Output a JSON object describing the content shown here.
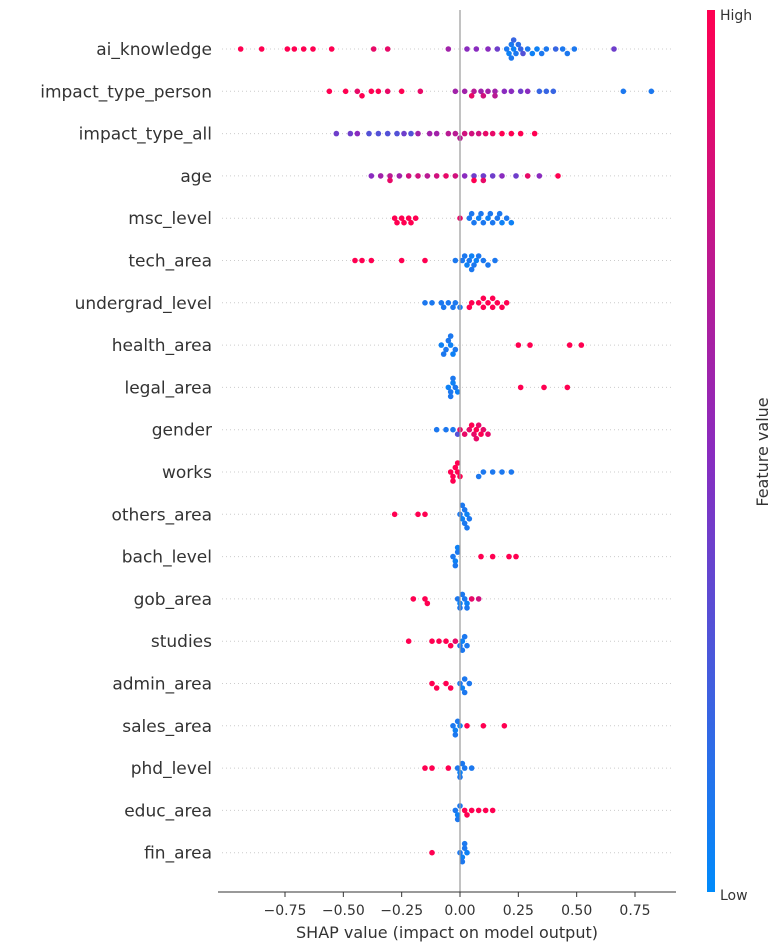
{
  "chart_data": {
    "type": "scatter",
    "xlabel": "SHAP value (impact on model output)",
    "xlim": [
      -1.0,
      0.9
    ],
    "xticks": [
      "−0.75",
      "−0.50",
      "−0.25",
      "0.00",
      "0.25",
      "0.50",
      "0.75"
    ],
    "xtick_values": [
      -0.75,
      -0.5,
      -0.25,
      0,
      0.25,
      0.5,
      0.75
    ],
    "colorbar": {
      "title": "Feature value",
      "high": "High",
      "low": "Low",
      "high_color": "#ff0051",
      "low_color": "#008bfb"
    },
    "grid": false,
    "features": [
      {
        "name": "ai_knowledge",
        "points": [
          [
            -0.94,
            1
          ],
          [
            -0.85,
            1
          ],
          [
            -0.74,
            1
          ],
          [
            -0.71,
            1
          ],
          [
            -0.67,
            1
          ],
          [
            -0.63,
            1
          ],
          [
            -0.55,
            1
          ],
          [
            -0.37,
            0.9
          ],
          [
            -0.31,
            0.9
          ],
          [
            -0.05,
            0.6
          ],
          [
            0.03,
            0.5
          ],
          [
            0.07,
            0.5
          ],
          [
            0.12,
            0.5
          ],
          [
            0.16,
            0.4
          ],
          [
            0.2,
            0.1
          ],
          [
            0.21,
            0.05
          ],
          [
            0.22,
            0.1
          ],
          [
            0.23,
            0.05
          ],
          [
            0.24,
            0.1
          ],
          [
            0.25,
            0.15
          ],
          [
            0.22,
            0.1
          ],
          [
            0.26,
            0.2
          ],
          [
            0.29,
            0.1
          ],
          [
            0.31,
            0.05
          ],
          [
            0.33,
            0.05
          ],
          [
            0.35,
            0.1
          ],
          [
            0.37,
            0.1
          ],
          [
            0.41,
            0.2
          ],
          [
            0.44,
            0.1
          ],
          [
            0.46,
            0.1
          ],
          [
            0.49,
            0.1
          ],
          [
            0.66,
            0.4
          ],
          [
            0.23,
            0.2
          ],
          [
            0.27,
            0.3
          ]
        ]
      },
      {
        "name": "impact_type_person",
        "points": [
          [
            -0.56,
            1
          ],
          [
            -0.49,
            1
          ],
          [
            -0.44,
            0.9
          ],
          [
            -0.42,
            1
          ],
          [
            -0.38,
            1
          ],
          [
            -0.35,
            1
          ],
          [
            -0.31,
            0.9
          ],
          [
            -0.25,
            1
          ],
          [
            -0.17,
            0.9
          ],
          [
            -0.02,
            0.6
          ],
          [
            0.02,
            0.6
          ],
          [
            0.06,
            0.7
          ],
          [
            0.09,
            0.6
          ],
          [
            0.12,
            0.6
          ],
          [
            0.15,
            0.6
          ],
          [
            0.19,
            0.5
          ],
          [
            0.22,
            0.5
          ],
          [
            0.26,
            0.4
          ],
          [
            0.29,
            0.5
          ],
          [
            0.34,
            0.2
          ],
          [
            0.37,
            0.2
          ],
          [
            0.4,
            0.2
          ],
          [
            0.7,
            0.1
          ],
          [
            0.82,
            0.1
          ],
          [
            0.05,
            0.9
          ],
          [
            0.1,
            0.8
          ],
          [
            0.15,
            0.7
          ]
        ]
      },
      {
        "name": "impact_type_all",
        "points": [
          [
            -0.53,
            0.4
          ],
          [
            -0.47,
            0.4
          ],
          [
            -0.44,
            0.5
          ],
          [
            -0.39,
            0.3
          ],
          [
            -0.35,
            0.3
          ],
          [
            -0.31,
            0.3
          ],
          [
            -0.27,
            0.3
          ],
          [
            -0.24,
            0.4
          ],
          [
            -0.21,
            0.3
          ],
          [
            -0.18,
            0.6
          ],
          [
            -0.13,
            0.6
          ],
          [
            -0.05,
            0.7
          ],
          [
            -0.02,
            0.7
          ],
          [
            0.02,
            0.8
          ],
          [
            0.05,
            0.8
          ],
          [
            0.08,
            0.8
          ],
          [
            0.11,
            0.9
          ],
          [
            0.14,
            0.9
          ],
          [
            0.18,
            1
          ],
          [
            0.22,
            1
          ],
          [
            0.26,
            1
          ],
          [
            0.32,
            1
          ],
          [
            -0.1,
            0.6
          ],
          [
            0.0,
            0.7
          ]
        ]
      },
      {
        "name": "age",
        "points": [
          [
            -0.38,
            0.5
          ],
          [
            -0.34,
            0.6
          ],
          [
            -0.3,
            0.7
          ],
          [
            -0.26,
            0.6
          ],
          [
            -0.22,
            0.8
          ],
          [
            -0.18,
            0.8
          ],
          [
            -0.14,
            0.7
          ],
          [
            -0.1,
            0.8
          ],
          [
            -0.06,
            0.9
          ],
          [
            -0.02,
            0.8
          ],
          [
            0.02,
            0.5
          ],
          [
            0.06,
            0.4
          ],
          [
            0.1,
            0.4
          ],
          [
            0.14,
            0.4
          ],
          [
            0.18,
            0.5
          ],
          [
            0.24,
            0.4
          ],
          [
            0.29,
            0.9
          ],
          [
            0.34,
            0.5
          ],
          [
            0.42,
            1
          ],
          [
            0.06,
            1
          ],
          [
            -0.3,
            0.9
          ],
          [
            0.1,
            0.9
          ]
        ]
      },
      {
        "name": "msc_level",
        "points": [
          [
            -0.28,
            1
          ],
          [
            -0.25,
            1
          ],
          [
            -0.22,
            1
          ],
          [
            -0.19,
            1
          ],
          [
            -0.27,
            1
          ],
          [
            -0.24,
            1
          ],
          [
            -0.21,
            1
          ],
          [
            0.0,
            0.9
          ],
          [
            0.04,
            0.1
          ],
          [
            0.06,
            0.1
          ],
          [
            0.08,
            0.05
          ],
          [
            0.1,
            0.1
          ],
          [
            0.12,
            0.05
          ],
          [
            0.14,
            0.1
          ],
          [
            0.16,
            0.1
          ],
          [
            0.18,
            0.05
          ],
          [
            0.2,
            0.1
          ],
          [
            0.22,
            0.05
          ],
          [
            0.05,
            0.1
          ],
          [
            0.09,
            0.1
          ],
          [
            0.13,
            0.1
          ],
          [
            0.17,
            0.1
          ]
        ]
      },
      {
        "name": "tech_area",
        "points": [
          [
            -0.45,
            1
          ],
          [
            -0.42,
            1
          ],
          [
            -0.38,
            1
          ],
          [
            -0.25,
            1
          ],
          [
            -0.15,
            1
          ],
          [
            -0.02,
            0.1
          ],
          [
            0.01,
            0.1
          ],
          [
            0.03,
            0.05
          ],
          [
            0.04,
            0.1
          ],
          [
            0.05,
            0.05
          ],
          [
            0.06,
            0.1
          ],
          [
            0.07,
            0.05
          ],
          [
            0.08,
            0.1
          ],
          [
            0.1,
            0.1
          ],
          [
            0.12,
            0.1
          ],
          [
            0.15,
            0.1
          ],
          [
            0.02,
            0.1
          ],
          [
            0.05,
            0.1
          ]
        ]
      },
      {
        "name": "undergrad_level",
        "points": [
          [
            -0.15,
            0.1
          ],
          [
            -0.12,
            0.1
          ],
          [
            -0.08,
            0.1
          ],
          [
            -0.05,
            0.1
          ],
          [
            -0.02,
            0.1
          ],
          [
            0.0,
            0.1
          ],
          [
            -0.07,
            0.1
          ],
          [
            -0.03,
            0.1
          ],
          [
            0.05,
            1
          ],
          [
            0.08,
            1
          ],
          [
            0.1,
            1
          ],
          [
            0.12,
            1
          ],
          [
            0.14,
            1
          ],
          [
            0.16,
            1
          ],
          [
            0.18,
            1
          ],
          [
            0.2,
            1
          ],
          [
            0.04,
            1
          ],
          [
            0.1,
            1
          ],
          [
            0.14,
            1
          ]
        ]
      },
      {
        "name": "health_area",
        "points": [
          [
            -0.08,
            0.05
          ],
          [
            -0.06,
            0.1
          ],
          [
            -0.04,
            0.05
          ],
          [
            -0.02,
            0.1
          ],
          [
            -0.05,
            0.1
          ],
          [
            -0.03,
            0.05
          ],
          [
            -0.07,
            0.1
          ],
          [
            -0.04,
            0.1
          ],
          [
            0.25,
            1
          ],
          [
            0.3,
            1
          ],
          [
            0.47,
            1
          ],
          [
            0.52,
            1
          ]
        ]
      },
      {
        "name": "legal_area",
        "points": [
          [
            -0.05,
            0.05
          ],
          [
            -0.04,
            0.1
          ],
          [
            -0.03,
            0.05
          ],
          [
            -0.02,
            0.1
          ],
          [
            -0.01,
            0.05
          ],
          [
            -0.04,
            0.1
          ],
          [
            -0.03,
            0.1
          ],
          [
            0.26,
            1
          ],
          [
            0.36,
            1
          ],
          [
            0.46,
            1
          ]
        ]
      },
      {
        "name": "gender",
        "points": [
          [
            -0.1,
            0.1
          ],
          [
            -0.06,
            0.1
          ],
          [
            -0.03,
            0.1
          ],
          [
            -0.01,
            0.3
          ],
          [
            0.0,
            0.9
          ],
          [
            0.02,
            0.9
          ],
          [
            0.04,
            0.9
          ],
          [
            0.06,
            0.9
          ],
          [
            0.07,
            1
          ],
          [
            0.08,
            0.9
          ],
          [
            0.09,
            1
          ],
          [
            0.1,
            0.9
          ],
          [
            0.12,
            0.9
          ],
          [
            0.05,
            1
          ],
          [
            0.07,
            0.9
          ]
        ]
      },
      {
        "name": "works",
        "points": [
          [
            -0.04,
            1
          ],
          [
            -0.03,
            1
          ],
          [
            -0.02,
            1
          ],
          [
            -0.01,
            1
          ],
          [
            0.0,
            1
          ],
          [
            -0.03,
            1
          ],
          [
            -0.01,
            1
          ],
          [
            0.1,
            0.1
          ],
          [
            0.14,
            0.1
          ],
          [
            0.18,
            0.1
          ],
          [
            0.22,
            0.1
          ],
          [
            0.08,
            0.1
          ]
        ]
      },
      {
        "name": "others_area",
        "points": [
          [
            -0.28,
            1
          ],
          [
            -0.18,
            1
          ],
          [
            -0.15,
            1
          ],
          [
            0.0,
            0.1
          ],
          [
            0.01,
            0.05
          ],
          [
            0.02,
            0.1
          ],
          [
            0.03,
            0.05
          ],
          [
            0.04,
            0.1
          ],
          [
            0.02,
            0.1
          ],
          [
            0.01,
            0.1
          ],
          [
            0.03,
            0.1
          ]
        ]
      },
      {
        "name": "bach_level",
        "points": [
          [
            -0.03,
            0.1
          ],
          [
            -0.02,
            0.05
          ],
          [
            -0.01,
            0.1
          ],
          [
            -0.02,
            0.1
          ],
          [
            -0.01,
            0.05
          ],
          [
            0.09,
            1
          ],
          [
            0.14,
            1
          ],
          [
            0.21,
            1
          ],
          [
            0.24,
            1
          ]
        ]
      },
      {
        "name": "gob_area",
        "points": [
          [
            -0.2,
            1
          ],
          [
            -0.15,
            1
          ],
          [
            -0.14,
            1
          ],
          [
            -0.01,
            0.1
          ],
          [
            0.0,
            0.05
          ],
          [
            0.02,
            0.1
          ],
          [
            0.03,
            0.05
          ],
          [
            0.01,
            0.1
          ],
          [
            0.03,
            0.1
          ],
          [
            0.05,
            0.9
          ],
          [
            0.08,
            0.8
          ],
          [
            0.0,
            0.1
          ]
        ]
      },
      {
        "name": "studies",
        "points": [
          [
            -0.22,
            1
          ],
          [
            -0.12,
            1
          ],
          [
            -0.09,
            1
          ],
          [
            -0.06,
            1
          ],
          [
            -0.04,
            1
          ],
          [
            -0.02,
            0.9
          ],
          [
            0.0,
            0.1
          ],
          [
            0.01,
            0.05
          ],
          [
            0.02,
            0.1
          ],
          [
            0.03,
            0.1
          ],
          [
            0.01,
            0.1
          ]
        ]
      },
      {
        "name": "admin_area",
        "points": [
          [
            -0.12,
            1
          ],
          [
            -0.1,
            1
          ],
          [
            -0.06,
            1
          ],
          [
            -0.04,
            1
          ],
          [
            0.0,
            0.1
          ],
          [
            0.01,
            0.05
          ],
          [
            0.02,
            0.1
          ],
          [
            0.04,
            0.1
          ],
          [
            0.02,
            0.1
          ]
        ]
      },
      {
        "name": "sales_area",
        "points": [
          [
            -0.03,
            0.1
          ],
          [
            -0.02,
            0.05
          ],
          [
            -0.01,
            0.1
          ],
          [
            -0.02,
            0.1
          ],
          [
            0.0,
            0.05
          ],
          [
            0.03,
            1
          ],
          [
            0.1,
            1
          ],
          [
            0.19,
            1
          ]
        ]
      },
      {
        "name": "phd_level",
        "points": [
          [
            -0.15,
            1
          ],
          [
            -0.12,
            1
          ],
          [
            -0.05,
            1
          ],
          [
            -0.01,
            0.1
          ],
          [
            0.0,
            0.05
          ],
          [
            0.01,
            0.1
          ],
          [
            0.02,
            0.1
          ],
          [
            0.05,
            0.1
          ],
          [
            0.0,
            0.1
          ]
        ]
      },
      {
        "name": "educ_area",
        "points": [
          [
            -0.02,
            0.1
          ],
          [
            -0.01,
            0.05
          ],
          [
            0.0,
            0.1
          ],
          [
            -0.01,
            0.1
          ],
          [
            0.02,
            1
          ],
          [
            0.05,
            1
          ],
          [
            0.08,
            1
          ],
          [
            0.11,
            1
          ],
          [
            0.14,
            1
          ],
          [
            0.03,
            1
          ]
        ]
      },
      {
        "name": "fin_area",
        "points": [
          [
            -0.12,
            1
          ],
          [
            0.0,
            0.1
          ],
          [
            0.01,
            0.05
          ],
          [
            0.02,
            0.1
          ],
          [
            0.03,
            0.05
          ],
          [
            0.01,
            0.1
          ],
          [
            0.02,
            0.1
          ]
        ]
      }
    ]
  }
}
